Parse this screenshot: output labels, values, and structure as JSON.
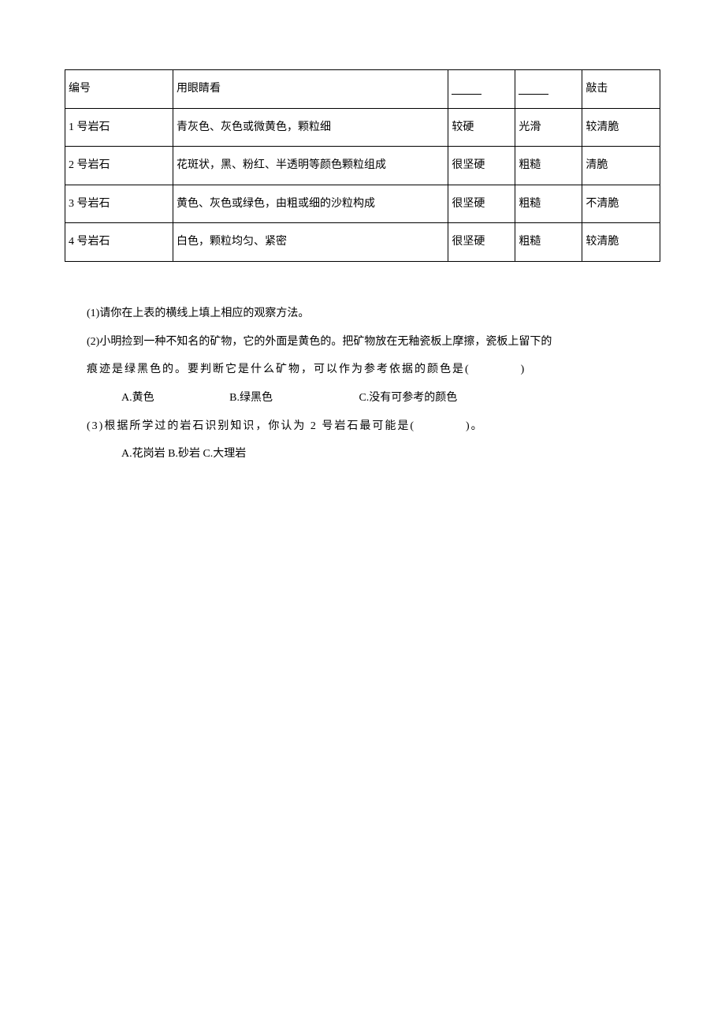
{
  "table": {
    "border_color": "#000000",
    "background_color": "#ffffff",
    "text_color": "#000000",
    "font_size": 14,
    "col_widths_pct": [
      13,
      45,
      13,
      13,
      16
    ],
    "headers": {
      "c1": "编号",
      "c2": "用眼睛看",
      "c3_blank": "",
      "c4_blank": "",
      "c5": "敲击"
    },
    "rows": [
      {
        "c1": "1 号岩石",
        "c2": "青灰色、灰色或微黄色，颗粒细",
        "c3": "较硬",
        "c4": "光滑",
        "c5": "较清脆"
      },
      {
        "c1": "2 号岩石",
        "c2": "花斑状，黑、粉红、半透明等颜色颗粒组成",
        "c3": "很坚硬",
        "c4": "粗糙",
        "c5": "清脆"
      },
      {
        "c1": "3 号岩石",
        "c2": "黄色、灰色或绿色，由粗或细的沙粒构成",
        "c3": "很坚硬",
        "c4": "粗糙",
        "c5": "不清脆"
      },
      {
        "c1": "4 号岩石",
        "c2": "白色，颗粒均匀、紧密",
        "c3": "很坚硬",
        "c4": "粗糙",
        "c5": "较清脆"
      }
    ]
  },
  "questions": {
    "q1": "(1)请你在上表的横线上填上相应的观察方法。",
    "q2_line1": "(2)小明捡到一种不知名的矿物，它的外面是黄色的。把矿物放在无釉瓷板上摩擦，瓷板上留下的",
    "q2_line2": "痕迹是绿黑色的。要判断它是什么矿物，可以作为参考依据的颜色是(　　　　)",
    "q2_opts": {
      "a": "A.黄色",
      "b": "B.绿黑色",
      "c": "C.没有可参考的颜色"
    },
    "q3": "(3)根据所学过的岩石识别知识，你认为 2 号岩石最可能是(　　　　)。",
    "q3_opts": "A.花岗岩 B.砂岩 C.大理岩"
  }
}
